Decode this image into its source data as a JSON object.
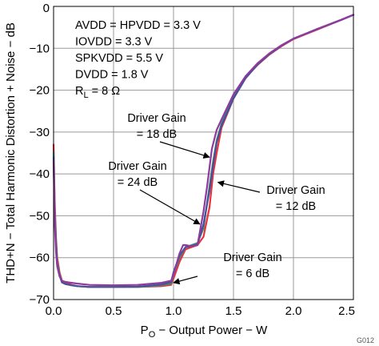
{
  "chart_data": {
    "type": "line",
    "title": "",
    "xlabel": "P_O − Output Power − W",
    "ylabel": "THD+N − Total Harmonic Distortion + Noise − dB",
    "xlim": [
      0,
      2.5
    ],
    "ylim": [
      -70,
      0
    ],
    "grid": true,
    "x_ticks": [
      "0.0",
      "0.5",
      "1.0",
      "1.5",
      "2.0",
      "2.5"
    ],
    "y_ticks": [
      "0",
      "−10",
      "−20",
      "−30",
      "−40",
      "−50",
      "−60",
      "−70"
    ],
    "conditions": [
      "AVDD = HPVDD = 3.3 V",
      "IOVDD = 3.3 V",
      "SPKVDD = 5.5 V",
      "DVDD = 1.8 V",
      "R_L = 8 Ω"
    ],
    "figure_id": "G012",
    "series": [
      {
        "name": "Driver Gain = 6 dB",
        "color": "#e8323c",
        "x": [
          0.0,
          0.01,
          0.02,
          0.03,
          0.05,
          0.07,
          0.1,
          0.15,
          0.2,
          0.3,
          0.5,
          0.7,
          0.9,
          0.98,
          1.0,
          1.05,
          1.1,
          1.15,
          1.2,
          1.25,
          1.3,
          1.33,
          1.36,
          1.4,
          1.5,
          1.6,
          1.7,
          1.8,
          1.9,
          2.0,
          2.2,
          2.4,
          2.5
        ],
        "y": [
          -33,
          -47,
          -55,
          -60,
          -63.5,
          -65.5,
          -66,
          -66.5,
          -66.8,
          -67,
          -67,
          -67,
          -66.8,
          -66.5,
          -65,
          -61,
          -58,
          -57.5,
          -57,
          -55,
          -48,
          -40,
          -35,
          -29,
          -22,
          -17,
          -14,
          -11.5,
          -9.5,
          -7.8,
          -5.5,
          -3.2,
          -2
        ]
      },
      {
        "name": "Driver Gain = 12 dB",
        "color": "#3f8f6b",
        "x": [
          0.0,
          0.01,
          0.02,
          0.03,
          0.05,
          0.07,
          0.1,
          0.15,
          0.2,
          0.3,
          0.5,
          0.7,
          0.9,
          0.98,
          1.0,
          1.05,
          1.1,
          1.15,
          1.2,
          1.25,
          1.3,
          1.33,
          1.36,
          1.4,
          1.5,
          1.6,
          1.7,
          1.8,
          1.9,
          2.0,
          2.2,
          2.4,
          2.5
        ],
        "y": [
          -35,
          -49,
          -56,
          -61,
          -64,
          -65.8,
          -66.3,
          -66.6,
          -66.8,
          -67,
          -67,
          -67,
          -66.6,
          -66.2,
          -64,
          -60,
          -57.5,
          -57,
          -56.5,
          -53,
          -43,
          -37,
          -32,
          -28,
          -21.5,
          -17,
          -13.8,
          -11.3,
          -9.3,
          -7.7,
          -5.4,
          -3.2,
          -2
        ]
      },
      {
        "name": "Driver Gain = 18 dB",
        "color": "#4a4f9a",
        "x": [
          0.0,
          0.01,
          0.02,
          0.03,
          0.05,
          0.07,
          0.1,
          0.15,
          0.2,
          0.3,
          0.5,
          0.7,
          0.9,
          0.98,
          1.0,
          1.05,
          1.1,
          1.15,
          1.2,
          1.25,
          1.3,
          1.33,
          1.36,
          1.4,
          1.5,
          1.6,
          1.7,
          1.8,
          1.9,
          2.0,
          2.2,
          2.4,
          2.5
        ],
        "y": [
          -36,
          -50,
          -57,
          -61.5,
          -64.3,
          -65.9,
          -66.3,
          -66.6,
          -66.8,
          -67,
          -67,
          -66.9,
          -66.4,
          -65.8,
          -63.5,
          -59.5,
          -57.5,
          -57.2,
          -56.8,
          -52,
          -44,
          -38,
          -32.5,
          -28.5,
          -22,
          -17.2,
          -13.9,
          -11.4,
          -9.4,
          -7.7,
          -5.4,
          -3.2,
          -2
        ]
      },
      {
        "name": "Driver Gain = 24 dB",
        "color": "#8e3a9e",
        "x": [
          0.0,
          0.01,
          0.02,
          0.03,
          0.05,
          0.07,
          0.1,
          0.15,
          0.2,
          0.3,
          0.5,
          0.7,
          0.9,
          0.98,
          1.0,
          1.05,
          1.08,
          1.1,
          1.15,
          1.2,
          1.25,
          1.28,
          1.32,
          1.36,
          1.4,
          1.5,
          1.6,
          1.7,
          1.8,
          1.9,
          2.0,
          2.2,
          2.4,
          2.5
        ],
        "y": [
          -37,
          -52,
          -58.5,
          -62,
          -64.5,
          -65.5,
          -65.8,
          -66,
          -66.2,
          -66.5,
          -66.6,
          -66.5,
          -66,
          -65.5,
          -64,
          -59,
          -57,
          -57,
          -57.3,
          -57,
          -49,
          -43,
          -34,
          -29.5,
          -27,
          -21,
          -16.7,
          -13.6,
          -11.2,
          -9.3,
          -7.7,
          -5.4,
          -3.2,
          -2
        ]
      }
    ],
    "annotations": [
      {
        "lines": [
          "Driver Gain",
          "= 18 dB"
        ],
        "target": [
          1.3,
          -36
        ]
      },
      {
        "lines": [
          "Driver Gain",
          "= 24 dB"
        ],
        "target": [
          1.22,
          -52
        ]
      },
      {
        "lines": [
          "Driver Gain",
          "= 12 dB"
        ],
        "target": [
          1.37,
          -42
        ]
      },
      {
        "lines": [
          "Driver Gain",
          "= 6 dB"
        ],
        "target": [
          1.0,
          -66
        ]
      }
    ]
  }
}
